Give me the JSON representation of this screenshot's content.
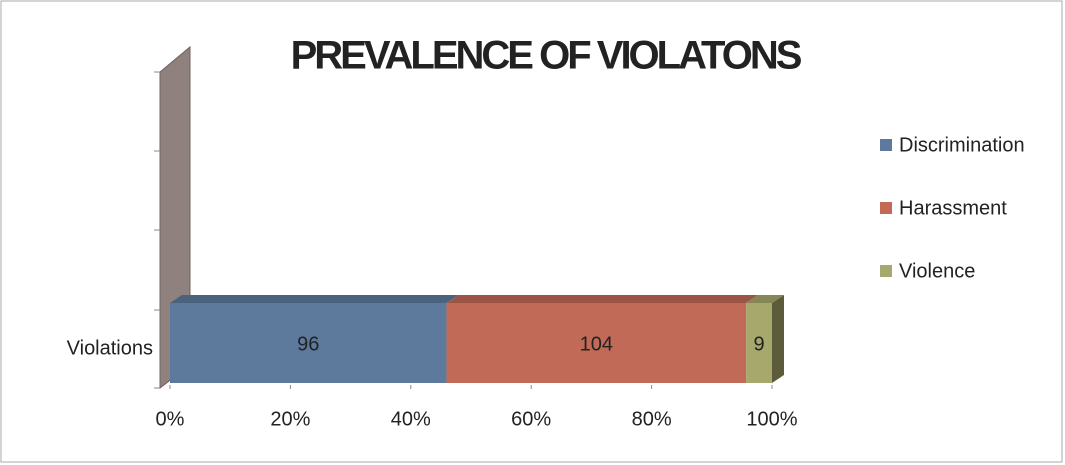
{
  "chart_data": {
    "type": "bar",
    "orientation": "horizontal",
    "stacking": "percent",
    "title": "PREVALENCE OF VIOLATONS",
    "categories": [
      "Violations"
    ],
    "series": [
      {
        "name": "Discrimination",
        "color": "#5d7a9c",
        "values": [
          96
        ]
      },
      {
        "name": "Harassment",
        "color": "#c26a58",
        "values": [
          104
        ]
      },
      {
        "name": "Violence",
        "color": "#a7a86b",
        "values": [
          9
        ]
      }
    ],
    "xlim": [
      0,
      100
    ],
    "xticks": [
      {
        "value": 0,
        "label": "0%"
      },
      {
        "value": 20,
        "label": "20%"
      },
      {
        "value": 40,
        "label": "40%"
      },
      {
        "value": 60,
        "label": "60%"
      },
      {
        "value": 80,
        "label": "80%"
      },
      {
        "value": 100,
        "label": "100%"
      }
    ],
    "legend": "right"
  }
}
